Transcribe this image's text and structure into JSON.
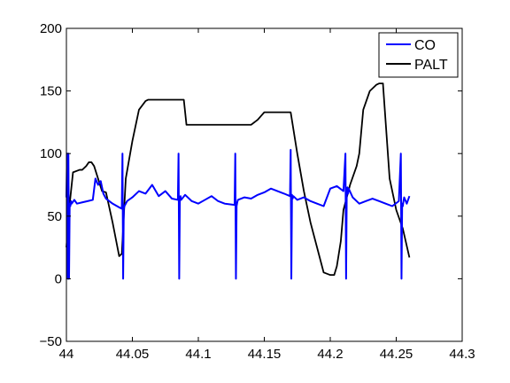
{
  "chart_data": {
    "type": "line",
    "title": "",
    "xlabel": "",
    "ylabel": "",
    "xlim": [
      44.0,
      44.3
    ],
    "ylim": [
      -50,
      200
    ],
    "grid": false,
    "legend_position": "top-right",
    "x_ticks": [
      44.0,
      44.05,
      44.1,
      44.15,
      44.2,
      44.25,
      44.3
    ],
    "x_tick_labels": [
      "44",
      "44.05",
      "44.1",
      "44.15",
      "44.2",
      "44.25",
      "44.3"
    ],
    "y_ticks": [
      -50,
      0,
      50,
      100,
      150,
      200
    ],
    "y_tick_labels": [
      "−50",
      "0",
      "50",
      "100",
      "150",
      "200"
    ],
    "series": [
      {
        "name": "CO",
        "color": "#0000ff",
        "x": [
          44.0,
          44.0005,
          44.001,
          44.0015,
          44.002,
          44.0025,
          44.003,
          44.0035,
          44.004,
          44.006,
          44.008,
          44.012,
          44.016,
          44.02,
          44.022,
          44.024,
          44.026,
          44.028,
          44.03,
          44.035,
          44.04,
          44.042,
          44.0425,
          44.043,
          44.0435,
          44.044,
          44.046,
          44.05,
          44.055,
          44.06,
          44.065,
          44.07,
          44.075,
          44.08,
          44.0845,
          44.085,
          44.0855,
          44.086,
          44.0865,
          44.087,
          44.09,
          44.095,
          44.1,
          44.105,
          44.11,
          44.115,
          44.12,
          44.1275,
          44.128,
          44.1285,
          44.129,
          44.1295,
          44.13,
          44.135,
          44.14,
          44.145,
          44.15,
          44.155,
          44.16,
          44.165,
          44.1695,
          44.17,
          44.1705,
          44.171,
          44.1715,
          44.172,
          44.175,
          44.18,
          44.185,
          44.19,
          44.195,
          44.2,
          44.205,
          44.21,
          44.2115,
          44.212,
          44.2125,
          44.213,
          44.2135,
          44.214,
          44.217,
          44.222,
          44.227,
          44.232,
          44.237,
          44.242,
          44.247,
          44.252,
          44.2535,
          44.254,
          44.2545,
          44.255,
          44.2555,
          44.256,
          44.258,
          44.26
        ],
        "y": [
          65,
          100,
          0,
          100,
          0,
          60,
          58,
          62,
          60,
          63,
          60,
          61,
          62,
          63,
          80,
          75,
          78,
          68,
          64,
          60,
          57,
          56,
          100,
          0,
          56,
          58,
          62,
          65,
          70,
          68,
          75,
          66,
          70,
          64,
          63,
          100,
          0,
          64,
          66,
          63,
          67,
          62,
          60,
          63,
          66,
          62,
          60,
          59,
          100,
          0,
          58,
          61,
          63,
          65,
          64,
          67,
          69,
          72,
          70,
          68,
          66,
          103,
          0,
          67,
          64,
          66,
          63,
          65,
          62,
          60,
          58,
          72,
          74,
          70,
          100,
          0,
          70,
          73,
          68,
          72,
          65,
          60,
          62,
          64,
          62,
          60,
          58,
          62,
          100,
          0,
          60,
          58,
          62,
          65,
          60,
          66
        ]
      },
      {
        "name": "PALT",
        "color": "#000000",
        "x": [
          44.0,
          44.002,
          44.005,
          44.01,
          44.012,
          44.015,
          44.017,
          44.019,
          44.021,
          44.027,
          44.03,
          44.035,
          44.04,
          44.042,
          44.045,
          44.05,
          44.055,
          44.06,
          44.062,
          44.065,
          44.07,
          44.075,
          44.08,
          44.085,
          44.089,
          44.091,
          44.1,
          44.11,
          44.12,
          44.13,
          44.14,
          44.145,
          44.15,
          44.155,
          44.16,
          44.165,
          44.17,
          44.175,
          44.18,
          44.183,
          44.185,
          44.19,
          44.195,
          44.2,
          44.203,
          44.205,
          44.208,
          44.21,
          44.215,
          44.22,
          44.222,
          44.225,
          44.23,
          44.235,
          44.237,
          44.24,
          44.24,
          44.245,
          44.25,
          44.255,
          44.26
        ],
        "y": [
          25,
          55,
          85,
          87,
          87,
          90,
          93,
          93,
          90,
          70,
          69,
          45,
          18,
          20,
          80,
          110,
          135,
          142,
          143,
          143,
          143,
          143,
          143,
          143,
          143,
          123,
          123,
          123,
          123,
          123,
          123,
          127,
          133,
          133,
          133,
          133,
          133,
          100,
          70,
          55,
          45,
          25,
          5,
          3,
          3,
          10,
          30,
          55,
          75,
          90,
          100,
          135,
          150,
          155,
          156,
          156,
          155,
          80,
          55,
          40,
          17
        ]
      }
    ]
  }
}
